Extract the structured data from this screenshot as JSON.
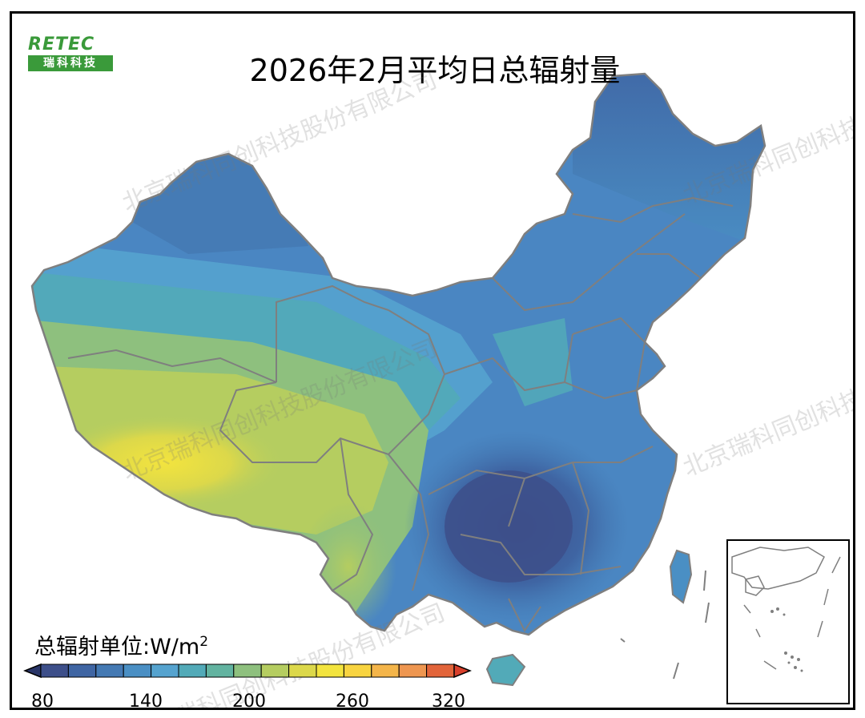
{
  "title": "2026年2月平均日总辐射量",
  "logo": {
    "top_text": "RETEC",
    "bottom_text": "瑞科科技"
  },
  "watermark_text": "北京瑞科同创科技股份有限公司",
  "legend": {
    "unit_label": "总辐射单位:W/m",
    "unit_superscript": "2",
    "range": [
      80,
      320
    ],
    "tick_labels": [
      "80",
      "140",
      "200",
      "260",
      "320"
    ],
    "colors": [
      "#3d4f8a",
      "#3f65a3",
      "#4479b3",
      "#4a8fc4",
      "#55a3cf",
      "#52aab8",
      "#62b3a0",
      "#8ec07e",
      "#b5cd60",
      "#dcd84a",
      "#f3e43e",
      "#f8d440",
      "#f4b54a",
      "#ee9650",
      "#e2643a"
    ]
  },
  "map": {
    "description_colors": {
      "southwest_low": "#3d4f8a",
      "north_east": "#4a80bd",
      "northwest_mid": "#55a3cf",
      "tibet_high": "#f3e43e",
      "plateau_green": "#8ec07e"
    }
  }
}
